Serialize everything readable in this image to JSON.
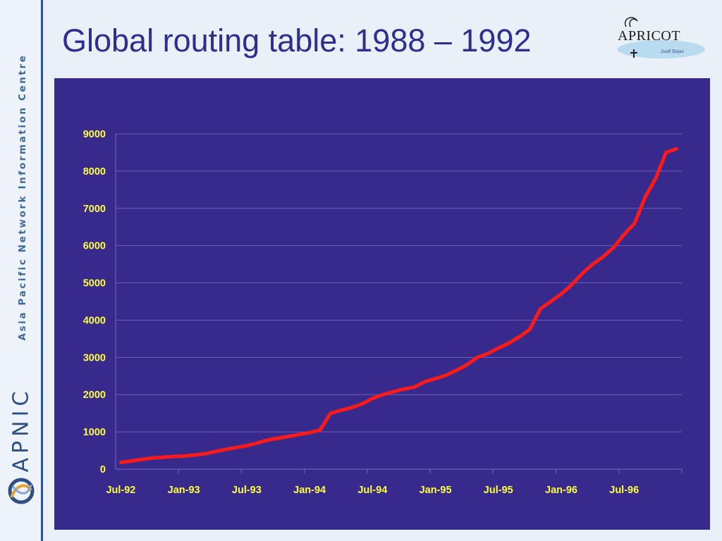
{
  "slide": {
    "title": "Global routing table: 1988 – 1992",
    "sidebar_org_text": "Asia Pacific Network Information Centre",
    "sidebar_brand": "APNIC",
    "logo_text": "APRICOT",
    "logo_subtext": "2oo8 Taipei"
  },
  "colors": {
    "background": "#eaf0f7",
    "title": "#2e2e8f",
    "plot_background": "#372a8c",
    "line": "#ff1a1a",
    "tick_labels": "#ffff3c",
    "gridlines": "#6a5fb8"
  },
  "chart_data": {
    "type": "line",
    "title": "",
    "xlabel": "",
    "ylabel": "",
    "ylim": [
      0,
      9000
    ],
    "yticks": [
      0,
      1000,
      2000,
      3000,
      4000,
      5000,
      6000,
      7000,
      8000,
      9000
    ],
    "x_tick_labels": [
      "Jul-92",
      "Jan-93",
      "Jul-93",
      "Jan-94",
      "Jul-94",
      "Jan-95",
      "Jul-95",
      "Jan-96",
      "Jul-96"
    ],
    "grid": true,
    "legend": "none",
    "series": [
      {
        "x": [
          "Jul-92",
          "Aug-92",
          "Sep-92",
          "Oct-92",
          "Nov-92",
          "Dec-92",
          "Jan-93",
          "Feb-93",
          "Mar-93",
          "Apr-93",
          "May-93",
          "Jun-93",
          "Jul-93",
          "Aug-93",
          "Sep-93",
          "Oct-93",
          "Nov-93",
          "Dec-93",
          "Jan-94",
          "Feb-94",
          "Mar-94",
          "Apr-94",
          "May-94",
          "Jun-94",
          "Jul-94",
          "Aug-94",
          "Sep-94",
          "Oct-94",
          "Nov-94",
          "Dec-94",
          "Jan-95",
          "Feb-95",
          "Mar-95",
          "Apr-95",
          "May-95",
          "Jun-95",
          "Jul-95",
          "Aug-95",
          "Sep-95",
          "Oct-95",
          "Nov-95",
          "Dec-95",
          "Jan-96",
          "Feb-96",
          "Mar-96",
          "Apr-96",
          "May-96",
          "Jun-96",
          "Jul-96",
          "Aug-96",
          "Sep-96",
          "Oct-96",
          "Nov-96",
          "Dec-96"
        ],
        "values": [
          180,
          220,
          260,
          300,
          320,
          340,
          350,
          380,
          410,
          470,
          530,
          580,
          630,
          700,
          780,
          830,
          880,
          930,
          980,
          1050,
          1500,
          1580,
          1650,
          1750,
          1900,
          2000,
          2080,
          2150,
          2200,
          2350,
          2430,
          2520,
          2650,
          2800,
          3000,
          3100,
          3250,
          3380,
          3550,
          3750,
          4300,
          4500,
          4700,
          4950,
          5250,
          5500,
          5700,
          5950,
          6300,
          6600,
          7300,
          7800,
          8500,
          8600
        ]
      }
    ]
  }
}
